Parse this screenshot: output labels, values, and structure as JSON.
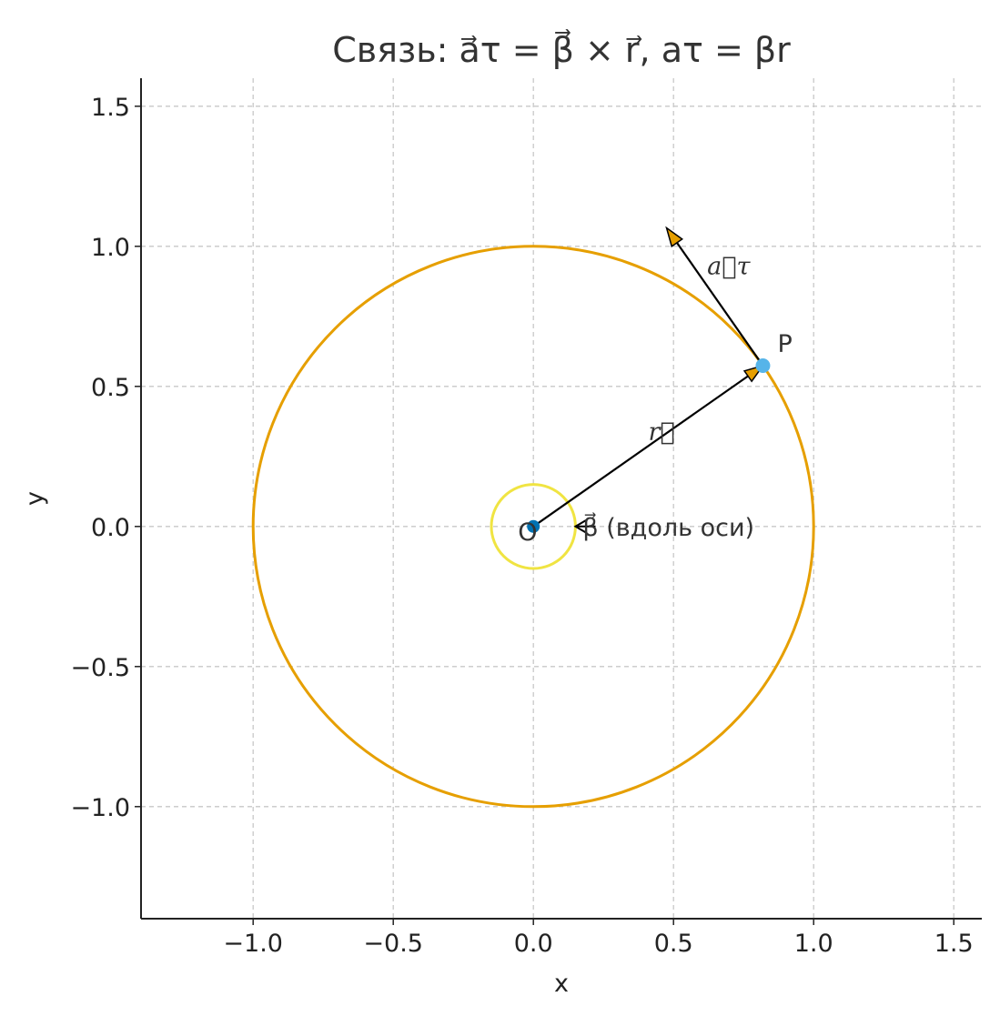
{
  "chart_data": {
    "type": "diagram",
    "title": "Связь:  a⃗τ = β⃗ × r⃗,   aτ = βr",
    "xlabel": "x",
    "ylabel": "y",
    "xlim": [
      -1.4,
      1.6
    ],
    "ylim": [
      -1.4,
      1.6
    ],
    "xticks": [
      -1.0,
      -0.5,
      0.0,
      0.5,
      1.0,
      1.5
    ],
    "yticks": [
      -1.0,
      -0.5,
      0.0,
      0.5,
      1.0,
      1.5
    ],
    "xtick_labels": [
      "−1.0",
      "−0.5",
      "0.0",
      "0.5",
      "1.0",
      "1.5"
    ],
    "ytick_labels": [
      "−1.0",
      "−0.5",
      "0.0",
      "0.5",
      "1.0",
      "1.5"
    ],
    "grid": true,
    "equal_aspect": true,
    "circle": {
      "center": [
        0,
        0
      ],
      "radius": 1.0,
      "color": "#E69F00"
    },
    "axis_circle": {
      "center": [
        0,
        0
      ],
      "radius": 0.15,
      "color": "#F0E442"
    },
    "point_P": {
      "angle_deg": 35,
      "x": 0.819,
      "y": 0.574,
      "label": "P",
      "color": "#56B4E9"
    },
    "point_O": {
      "x": 0,
      "y": 0,
      "label": "O",
      "color": "#0072B2"
    },
    "vector_r": {
      "from": [
        0,
        0
      ],
      "to": [
        0.819,
        0.574
      ],
      "label": "r⃗"
    },
    "vector_a_tau": {
      "from": [
        0.819,
        0.574
      ],
      "to": [
        0.475,
        1.066
      ],
      "label": "a⃗τ"
    },
    "beta_annotation": {
      "points_to": [
        0.15,
        0
      ],
      "label": "β⃗ (вдоль оси)"
    }
  }
}
